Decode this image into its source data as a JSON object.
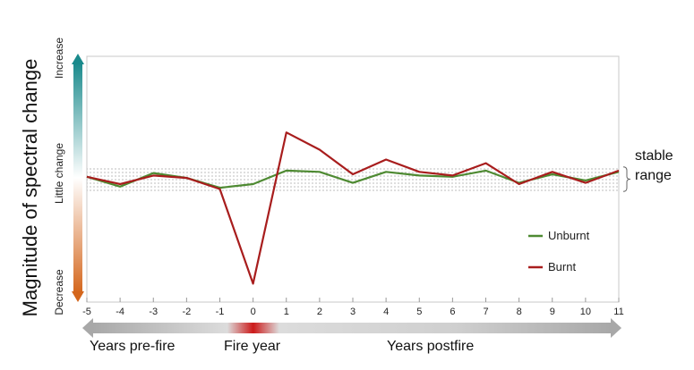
{
  "chart_data": {
    "type": "line",
    "ylabel": "Magnitude of spectral change",
    "y_scale_labels": {
      "top": "Increase",
      "middle": "Little change",
      "bottom": "Decrease"
    },
    "x": [
      -5,
      -4,
      -3,
      -2,
      -1,
      0,
      1,
      2,
      3,
      4,
      5,
      6,
      7,
      8,
      9,
      10,
      11
    ],
    "ylim": [
      -10,
      10
    ],
    "series": [
      {
        "name": "Unburnt",
        "color": "#4e8a32",
        "values": [
          0.2,
          -0.6,
          0.5,
          0.1,
          -0.7,
          -0.4,
          0.7,
          0.6,
          -0.3,
          0.6,
          0.3,
          0.2,
          0.7,
          -0.3,
          0.4,
          -0.1,
          0.6
        ]
      },
      {
        "name": "Burnt",
        "color": "#a81d1d",
        "values": [
          0.2,
          -0.4,
          0.3,
          0.1,
          -0.8,
          -8.5,
          3.8,
          2.4,
          0.4,
          1.6,
          0.6,
          0.3,
          1.3,
          -0.4,
          0.6,
          -0.3,
          0.7
        ]
      }
    ],
    "stable_range": {
      "low": -1.0,
      "high": 1.0,
      "label_lines": [
        "stable",
        "range"
      ]
    },
    "legend_position": "right",
    "grid": false,
    "period_labels": {
      "pre": "Years pre-fire",
      "fire": "Fire year",
      "post": "Years postfire"
    }
  },
  "colors": {
    "increase": "#1a8a8c",
    "decrease": "#d4661c",
    "fire_year": "#cc1a1a",
    "timeline": "#a8a8a8",
    "stable_band": "#8a8a8a"
  }
}
